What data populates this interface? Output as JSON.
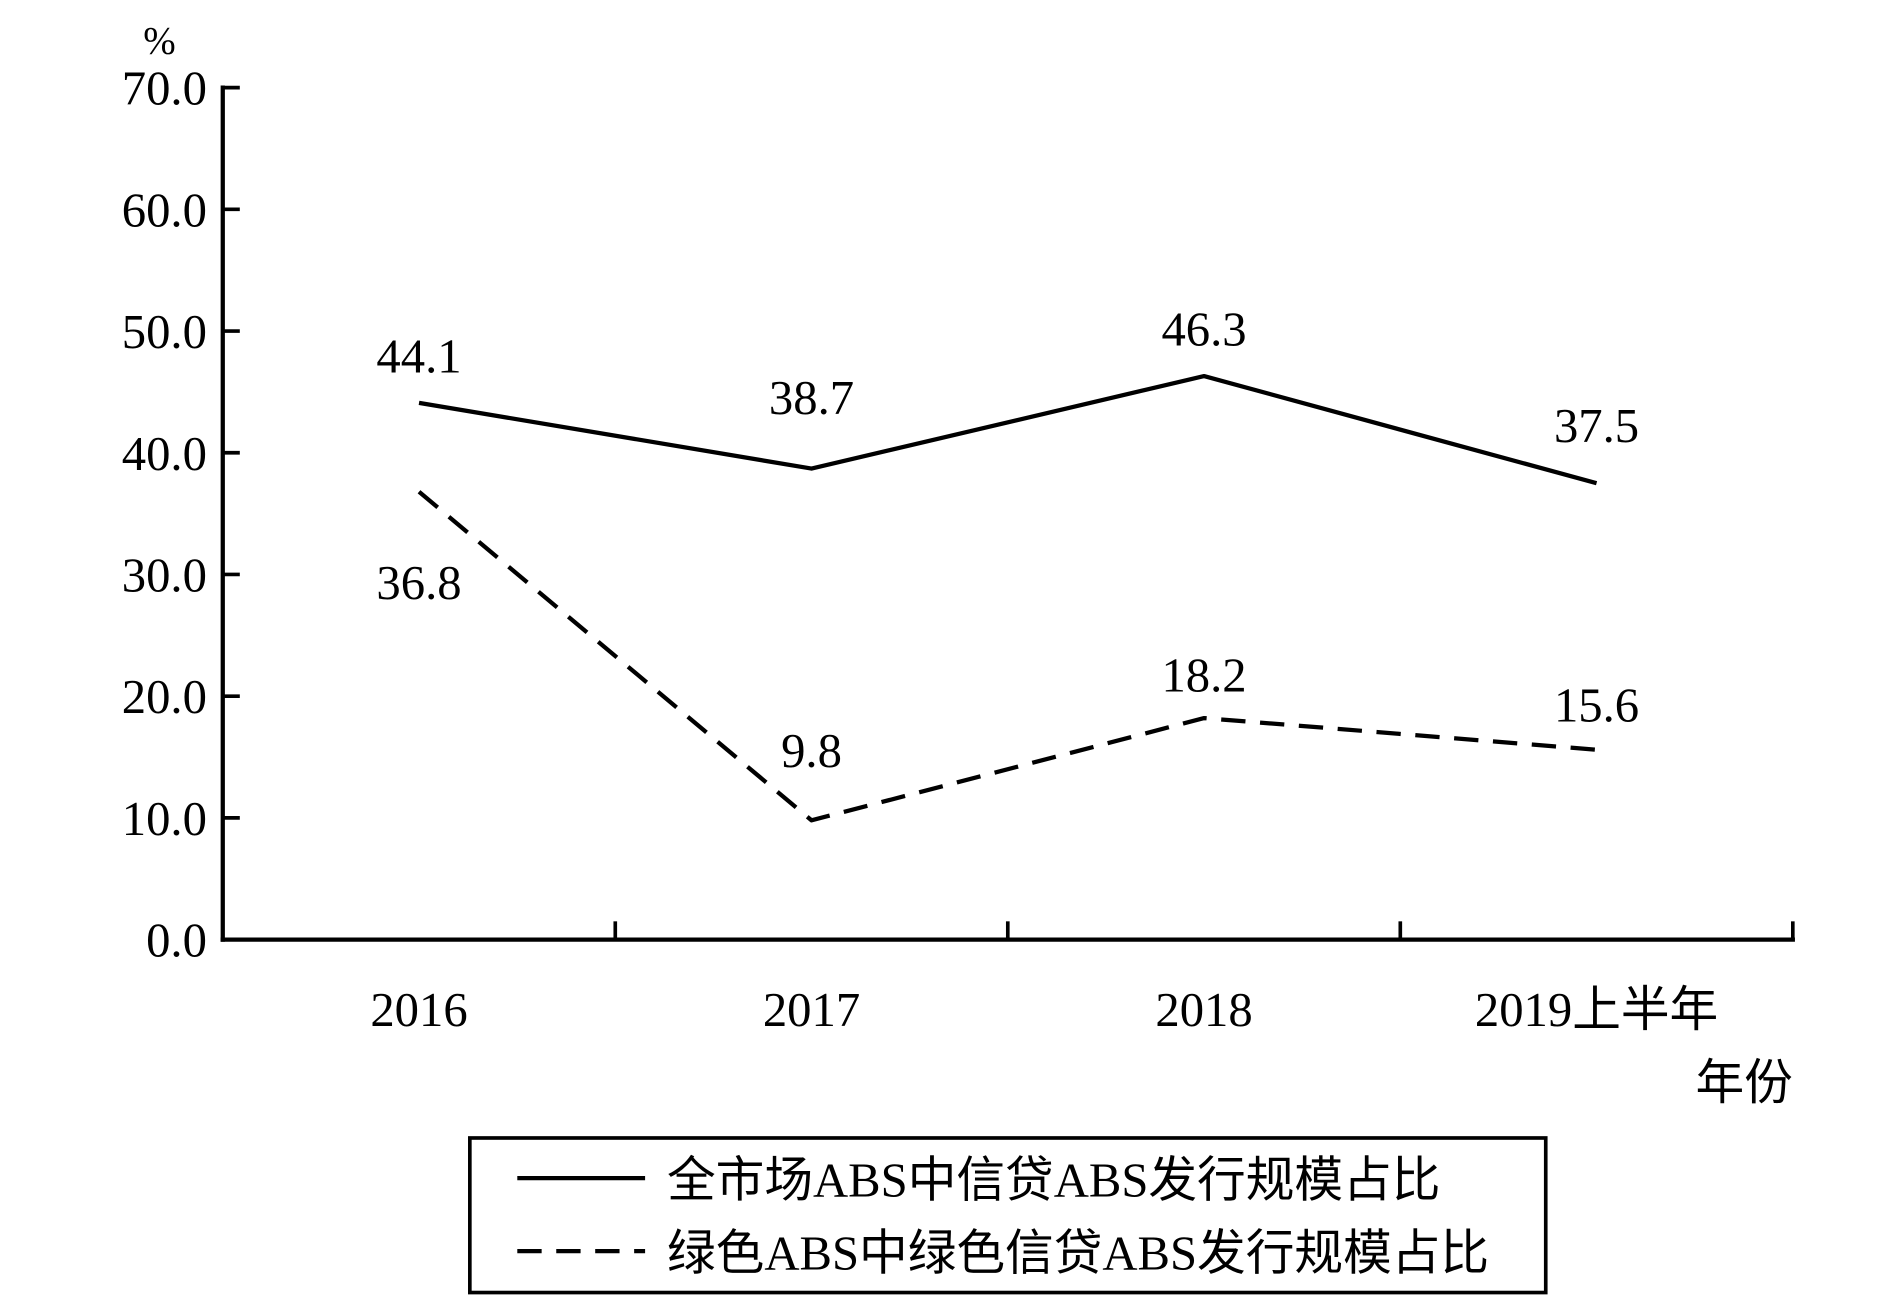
{
  "chart_data": {
    "type": "line",
    "categories": [
      "2016",
      "2017",
      "2018",
      "2019上半年"
    ],
    "series": [
      {
        "name": "全市场ABS中信贷ABS发行规模占比",
        "values": [
          44.1,
          38.7,
          46.3,
          37.5
        ],
        "line_style": "solid",
        "color": "#000000"
      },
      {
        "name": "绿色ABS中绿色信贷ABS发行规模占比",
        "values": [
          36.8,
          9.8,
          18.2,
          15.6
        ],
        "line_style": "dashed",
        "color": "#000000"
      }
    ],
    "ylabel": "%",
    "xlabel": "年份",
    "ylim": [
      0,
      70
    ],
    "yticks": [
      "0.0",
      "10.0",
      "20.0",
      "30.0",
      "40.0",
      "50.0",
      "60.0",
      "70.0"
    ],
    "grid": false,
    "legend": "bottom"
  }
}
